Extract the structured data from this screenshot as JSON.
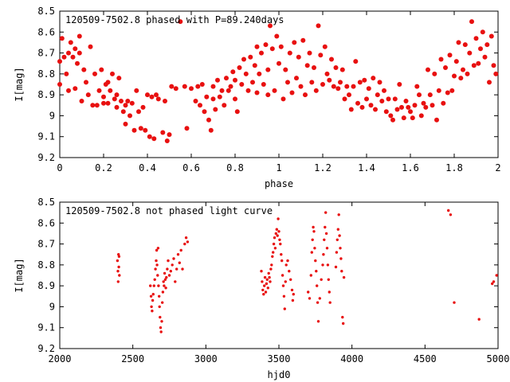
{
  "chart_data": [
    {
      "type": "scatter",
      "title": "120509-7502.8 phased with P=89.240days",
      "xlabel": "phase",
      "ylabel": "I[mag]",
      "xlim": [
        0,
        2
      ],
      "ylim": [
        9.2,
        8.5
      ],
      "y_inverted": true,
      "xticks": [
        "0",
        "0.2",
        "0.4",
        "0.6",
        "0.8",
        "1",
        "1.2",
        "1.4",
        "1.6",
        "1.8",
        "2"
      ],
      "yticks": [
        "8.5",
        "8.6",
        "8.7",
        "8.8",
        "8.9",
        "9",
        "9.1",
        "9.2"
      ],
      "grid": false,
      "marker_color": "#e81010",
      "points": [
        [
          0.0,
          8.74
        ],
        [
          0.0,
          8.85
        ],
        [
          0.01,
          8.63
        ],
        [
          0.02,
          8.72
        ],
        [
          0.03,
          8.8
        ],
        [
          0.04,
          8.88
        ],
        [
          0.04,
          8.7
        ],
        [
          0.05,
          8.65
        ],
        [
          0.06,
          8.72
        ],
        [
          0.07,
          8.68
        ],
        [
          0.07,
          8.87
        ],
        [
          0.08,
          8.75
        ],
        [
          0.09,
          8.62
        ],
        [
          0.09,
          8.7
        ],
        [
          0.1,
          8.93
        ],
        [
          0.11,
          8.78
        ],
        [
          0.12,
          8.84
        ],
        [
          0.13,
          8.9
        ],
        [
          0.14,
          8.67
        ],
        [
          0.15,
          8.95
        ],
        [
          0.16,
          8.8
        ],
        [
          0.17,
          8.95
        ],
        [
          0.18,
          8.88
        ],
        [
          0.19,
          8.78
        ],
        [
          0.2,
          8.94
        ],
        [
          0.2,
          8.91
        ],
        [
          0.21,
          8.85
        ],
        [
          0.22,
          8.84
        ],
        [
          0.22,
          8.94
        ],
        [
          0.23,
          8.88
        ],
        [
          0.24,
          8.8
        ],
        [
          0.25,
          8.92
        ],
        [
          0.26,
          8.96
        ],
        [
          0.26,
          8.9
        ],
        [
          0.27,
          8.82
        ],
        [
          0.28,
          8.93
        ],
        [
          0.29,
          8.98
        ],
        [
          0.3,
          8.95
        ],
        [
          0.3,
          9.04
        ],
        [
          0.31,
          8.93
        ],
        [
          0.32,
          9.0
        ],
        [
          0.33,
          8.94
        ],
        [
          0.34,
          9.07
        ],
        [
          0.35,
          8.88
        ],
        [
          0.36,
          8.98
        ],
        [
          0.37,
          9.06
        ],
        [
          0.38,
          8.96
        ],
        [
          0.39,
          9.07
        ],
        [
          0.4,
          8.9
        ],
        [
          0.41,
          9.1
        ],
        [
          0.42,
          8.91
        ],
        [
          0.43,
          9.11
        ],
        [
          0.44,
          8.9
        ],
        [
          0.45,
          8.92
        ],
        [
          0.47,
          9.08
        ],
        [
          0.48,
          8.93
        ],
        [
          0.49,
          9.12
        ],
        [
          0.5,
          9.09
        ],
        [
          0.51,
          8.86
        ],
        [
          0.53,
          8.87
        ],
        [
          0.55,
          8.55
        ],
        [
          0.57,
          8.86
        ],
        [
          0.58,
          9.06
        ],
        [
          0.6,
          8.87
        ],
        [
          0.62,
          8.93
        ],
        [
          0.63,
          8.86
        ],
        [
          0.64,
          8.95
        ],
        [
          0.65,
          8.85
        ],
        [
          0.66,
          8.98
        ],
        [
          0.67,
          8.91
        ],
        [
          0.68,
          9.02
        ],
        [
          0.69,
          9.07
        ],
        [
          0.7,
          8.92
        ],
        [
          0.7,
          8.86
        ],
        [
          0.71,
          8.97
        ],
        [
          0.72,
          8.83
        ],
        [
          0.73,
          8.91
        ],
        [
          0.74,
          8.88
        ],
        [
          0.75,
          8.95
        ],
        [
          0.76,
          8.82
        ],
        [
          0.77,
          8.88
        ],
        [
          0.78,
          8.86
        ],
        [
          0.79,
          8.79
        ],
        [
          0.8,
          8.92
        ],
        [
          0.8,
          8.83
        ],
        [
          0.81,
          8.98
        ],
        [
          0.82,
          8.77
        ],
        [
          0.83,
          8.85
        ],
        [
          0.84,
          8.73
        ],
        [
          0.85,
          8.8
        ],
        [
          0.86,
          8.88
        ],
        [
          0.87,
          8.72
        ],
        [
          0.88,
          8.84
        ],
        [
          0.89,
          8.76
        ],
        [
          0.9,
          8.89
        ],
        [
          0.9,
          8.67
        ],
        [
          0.91,
          8.8
        ],
        [
          0.92,
          8.7
        ],
        [
          0.93,
          8.85
        ],
        [
          0.94,
          8.66
        ],
        [
          0.95,
          8.9
        ],
        [
          0.95,
          8.78
        ],
        [
          0.96,
          8.57
        ],
        [
          0.97,
          8.68
        ],
        [
          0.98,
          8.88
        ],
        [
          0.99,
          8.62
        ],
        [
          1.0,
          8.75
        ],
        [
          1.01,
          8.67
        ],
        [
          1.02,
          8.92
        ],
        [
          1.03,
          8.78
        ],
        [
          1.04,
          8.84
        ],
        [
          1.05,
          8.7
        ],
        [
          1.06,
          8.89
        ],
        [
          1.07,
          8.65
        ],
        [
          1.08,
          8.82
        ],
        [
          1.09,
          8.72
        ],
        [
          1.1,
          8.86
        ],
        [
          1.11,
          8.64
        ],
        [
          1.12,
          8.9
        ],
        [
          1.13,
          8.76
        ],
        [
          1.14,
          8.7
        ],
        [
          1.15,
          8.84
        ],
        [
          1.16,
          8.77
        ],
        [
          1.17,
          8.88
        ],
        [
          1.18,
          8.57
        ],
        [
          1.19,
          8.71
        ],
        [
          1.2,
          8.85
        ],
        [
          1.21,
          8.67
        ],
        [
          1.22,
          8.8
        ],
        [
          1.23,
          8.83
        ],
        [
          1.24,
          8.73
        ],
        [
          1.25,
          8.86
        ],
        [
          1.26,
          8.77
        ],
        [
          1.27,
          8.87
        ],
        [
          1.28,
          8.84
        ],
        [
          1.29,
          8.78
        ],
        [
          1.3,
          8.92
        ],
        [
          1.31,
          8.86
        ],
        [
          1.32,
          8.9
        ],
        [
          1.33,
          8.97
        ],
        [
          1.34,
          8.86
        ],
        [
          1.35,
          8.74
        ],
        [
          1.36,
          8.94
        ],
        [
          1.37,
          8.84
        ],
        [
          1.38,
          8.96
        ],
        [
          1.39,
          8.83
        ],
        [
          1.4,
          8.92
        ],
        [
          1.41,
          8.87
        ],
        [
          1.42,
          8.95
        ],
        [
          1.43,
          8.82
        ],
        [
          1.44,
          8.97
        ],
        [
          1.45,
          8.9
        ],
        [
          1.46,
          8.84
        ],
        [
          1.47,
          8.93
        ],
        [
          1.48,
          8.88
        ],
        [
          1.49,
          8.98
        ],
        [
          1.5,
          8.92
        ],
        [
          1.51,
          9.0
        ],
        [
          1.52,
          9.02
        ],
        [
          1.53,
          8.92
        ],
        [
          1.54,
          8.97
        ],
        [
          1.55,
          8.85
        ],
        [
          1.56,
          8.96
        ],
        [
          1.57,
          9.01
        ],
        [
          1.58,
          8.93
        ],
        [
          1.59,
          8.96
        ],
        [
          1.6,
          8.98
        ],
        [
          1.61,
          9.01
        ],
        [
          1.62,
          8.95
        ],
        [
          1.63,
          8.86
        ],
        [
          1.64,
          8.9
        ],
        [
          1.65,
          9.0
        ],
        [
          1.66,
          8.94
        ],
        [
          1.67,
          8.96
        ],
        [
          1.68,
          8.78
        ],
        [
          1.69,
          8.9
        ],
        [
          1.7,
          8.95
        ],
        [
          1.71,
          8.8
        ],
        [
          1.72,
          9.02
        ],
        [
          1.73,
          8.88
        ],
        [
          1.74,
          8.73
        ],
        [
          1.75,
          8.94
        ],
        [
          1.76,
          8.77
        ],
        [
          1.77,
          8.89
        ],
        [
          1.78,
          8.71
        ],
        [
          1.79,
          8.88
        ],
        [
          1.8,
          8.81
        ],
        [
          1.81,
          8.74
        ],
        [
          1.82,
          8.65
        ],
        [
          1.83,
          8.82
        ],
        [
          1.84,
          8.78
        ],
        [
          1.85,
          8.66
        ],
        [
          1.86,
          8.8
        ],
        [
          1.87,
          8.7
        ],
        [
          1.88,
          8.55
        ],
        [
          1.89,
          8.76
        ],
        [
          1.9,
          8.63
        ],
        [
          1.91,
          8.75
        ],
        [
          1.92,
          8.68
        ],
        [
          1.93,
          8.6
        ],
        [
          1.94,
          8.72
        ],
        [
          1.95,
          8.66
        ],
        [
          1.96,
          8.84
        ],
        [
          1.97,
          8.62
        ],
        [
          1.98,
          8.76
        ],
        [
          1.99,
          8.8
        ]
      ]
    },
    {
      "type": "scatter",
      "title": "120509-7502.8 not phased light curve",
      "xlabel": "hjd0",
      "ylabel": "I[mag]",
      "xlim": [
        2000,
        5000
      ],
      "ylim": [
        9.2,
        8.5
      ],
      "y_inverted": true,
      "xticks": [
        "2000",
        "2500",
        "3000",
        "3500",
        "4000",
        "4500",
        "5000"
      ],
      "yticks": [
        "8.5",
        "8.6",
        "8.7",
        "8.8",
        "8.9",
        "9",
        "9.1",
        "9.2"
      ],
      "grid": false,
      "marker_color": "#e81010",
      "points": [
        [
          2395,
          8.78
        ],
        [
          2398,
          8.83
        ],
        [
          2400,
          8.88
        ],
        [
          2402,
          8.75
        ],
        [
          2404,
          8.81
        ],
        [
          2406,
          8.76
        ],
        [
          2408,
          8.85
        ],
        [
          2620,
          8.9
        ],
        [
          2625,
          8.95
        ],
        [
          2628,
          9.0
        ],
        [
          2632,
          9.02
        ],
        [
          2636,
          8.97
        ],
        [
          2640,
          8.94
        ],
        [
          2645,
          8.9
        ],
        [
          2650,
          8.87
        ],
        [
          2655,
          8.82
        ],
        [
          2660,
          8.78
        ],
        [
          2663,
          8.73
        ],
        [
          2666,
          8.8
        ],
        [
          2670,
          8.85
        ],
        [
          2673,
          8.72
        ],
        [
          2676,
          8.9
        ],
        [
          2680,
          8.95
        ],
        [
          2683,
          9.0
        ],
        [
          2686,
          9.05
        ],
        [
          2690,
          9.1
        ],
        [
          2694,
          9.12
        ],
        [
          2698,
          9.07
        ],
        [
          2702,
          8.98
        ],
        [
          2706,
          8.93
        ],
        [
          2710,
          8.88
        ],
        [
          2714,
          8.9
        ],
        [
          2718,
          8.84
        ],
        [
          2722,
          8.87
        ],
        [
          2726,
          8.91
        ],
        [
          2730,
          8.86
        ],
        [
          2736,
          8.82
        ],
        [
          2742,
          8.78
        ],
        [
          2750,
          8.85
        ],
        [
          2760,
          8.83
        ],
        [
          2770,
          8.8
        ],
        [
          2780,
          8.77
        ],
        [
          2790,
          8.88
        ],
        [
          2800,
          8.82
        ],
        [
          2810,
          8.75
        ],
        [
          2820,
          8.79
        ],
        [
          2830,
          8.73
        ],
        [
          2840,
          8.82
        ],
        [
          2855,
          8.7
        ],
        [
          2865,
          8.67
        ],
        [
          2875,
          8.69
        ],
        [
          3380,
          8.83
        ],
        [
          3385,
          8.88
        ],
        [
          3390,
          8.92
        ],
        [
          3395,
          8.94
        ],
        [
          3400,
          8.9
        ],
        [
          3405,
          8.86
        ],
        [
          3410,
          8.93
        ],
        [
          3415,
          8.89
        ],
        [
          3420,
          8.87
        ],
        [
          3425,
          8.91
        ],
        [
          3430,
          8.84
        ],
        [
          3435,
          8.86
        ],
        [
          3440,
          8.88
        ],
        [
          3445,
          8.82
        ],
        [
          3450,
          8.8
        ],
        [
          3455,
          8.76
        ],
        [
          3460,
          8.74
        ],
        [
          3465,
          8.7
        ],
        [
          3470,
          8.67
        ],
        [
          3475,
          8.72
        ],
        [
          3480,
          8.65
        ],
        [
          3485,
          8.63
        ],
        [
          3490,
          8.66
        ],
        [
          3495,
          8.58
        ],
        [
          3500,
          8.64
        ],
        [
          3505,
          8.68
        ],
        [
          3510,
          8.7
        ],
        [
          3515,
          8.75
        ],
        [
          3520,
          8.78
        ],
        [
          3525,
          8.85
        ],
        [
          3530,
          8.9
        ],
        [
          3535,
          8.95
        ],
        [
          3540,
          9.01
        ],
        [
          3545,
          8.88
        ],
        [
          3550,
          8.8
        ],
        [
          3560,
          8.78
        ],
        [
          3570,
          8.83
        ],
        [
          3580,
          8.87
        ],
        [
          3590,
          8.92
        ],
        [
          3595,
          8.97
        ],
        [
          3600,
          8.94
        ],
        [
          3700,
          8.93
        ],
        [
          3710,
          8.96
        ],
        [
          3720,
          8.85
        ],
        [
          3725,
          8.74
        ],
        [
          3730,
          8.68
        ],
        [
          3735,
          8.62
        ],
        [
          3740,
          8.64
        ],
        [
          3745,
          8.72
        ],
        [
          3750,
          8.78
        ],
        [
          3755,
          8.83
        ],
        [
          3760,
          8.9
        ],
        [
          3765,
          8.98
        ],
        [
          3770,
          9.07
        ],
        [
          3780,
          8.96
        ],
        [
          3790,
          8.87
        ],
        [
          3800,
          8.8
        ],
        [
          3805,
          8.75
        ],
        [
          3810,
          8.68
        ],
        [
          3815,
          8.62
        ],
        [
          3820,
          8.55
        ],
        [
          3825,
          8.65
        ],
        [
          3830,
          8.72
        ],
        [
          3835,
          8.8
        ],
        [
          3840,
          8.87
        ],
        [
          3845,
          8.93
        ],
        [
          3850,
          8.98
        ],
        [
          3890,
          8.81
        ],
        [
          3895,
          8.74
        ],
        [
          3900,
          8.68
        ],
        [
          3905,
          8.63
        ],
        [
          3910,
          8.56
        ],
        [
          3915,
          8.66
        ],
        [
          3920,
          8.72
        ],
        [
          3925,
          8.77
        ],
        [
          3930,
          8.83
        ],
        [
          3935,
          9.05
        ],
        [
          3940,
          9.08
        ],
        [
          3945,
          8.86
        ],
        [
          4660,
          8.54
        ],
        [
          4675,
          8.56
        ],
        [
          4700,
          8.98
        ],
        [
          4870,
          9.06
        ],
        [
          4960,
          8.89
        ],
        [
          4970,
          8.88
        ],
        [
          4990,
          8.85
        ]
      ]
    }
  ]
}
